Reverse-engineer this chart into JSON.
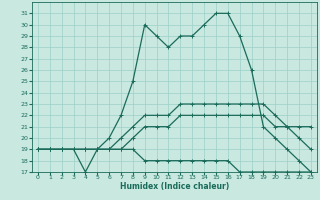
{
  "xlabel": "Humidex (Indice chaleur)",
  "xlim": [
    -0.5,
    23.5
  ],
  "ylim": [
    17,
    32
  ],
  "yticks": [
    17,
    18,
    19,
    20,
    21,
    22,
    23,
    24,
    25,
    26,
    27,
    28,
    29,
    30,
    31
  ],
  "xticks": [
    0,
    1,
    2,
    3,
    4,
    5,
    6,
    7,
    8,
    9,
    10,
    11,
    12,
    13,
    14,
    15,
    16,
    17,
    18,
    19,
    20,
    21,
    22,
    23
  ],
  "bg_color": "#c8e8e0",
  "grid_color": "#9ecfca",
  "line_color": "#1a6b5a",
  "line_width": 0.9,
  "marker": "+",
  "marker_size": 3.5,
  "series": [
    [
      19,
      19,
      19,
      19,
      17,
      19,
      20,
      22,
      25,
      30,
      29,
      28,
      29,
      29,
      30,
      31,
      31,
      29,
      26,
      21,
      20,
      19,
      18,
      17
    ],
    [
      19,
      19,
      19,
      19,
      19,
      19,
      19,
      19,
      20,
      21,
      21,
      21,
      22,
      22,
      22,
      22,
      22,
      22,
      22,
      22,
      21,
      21,
      21,
      21
    ],
    [
      19,
      19,
      19,
      19,
      19,
      19,
      19,
      20,
      21,
      22,
      22,
      22,
      23,
      23,
      23,
      23,
      23,
      23,
      23,
      23,
      22,
      21,
      20,
      19
    ],
    [
      19,
      19,
      19,
      19,
      19,
      19,
      19,
      19,
      19,
      18,
      18,
      18,
      18,
      18,
      18,
      18,
      18,
      17,
      17,
      17,
      17,
      17,
      17,
      17
    ]
  ]
}
